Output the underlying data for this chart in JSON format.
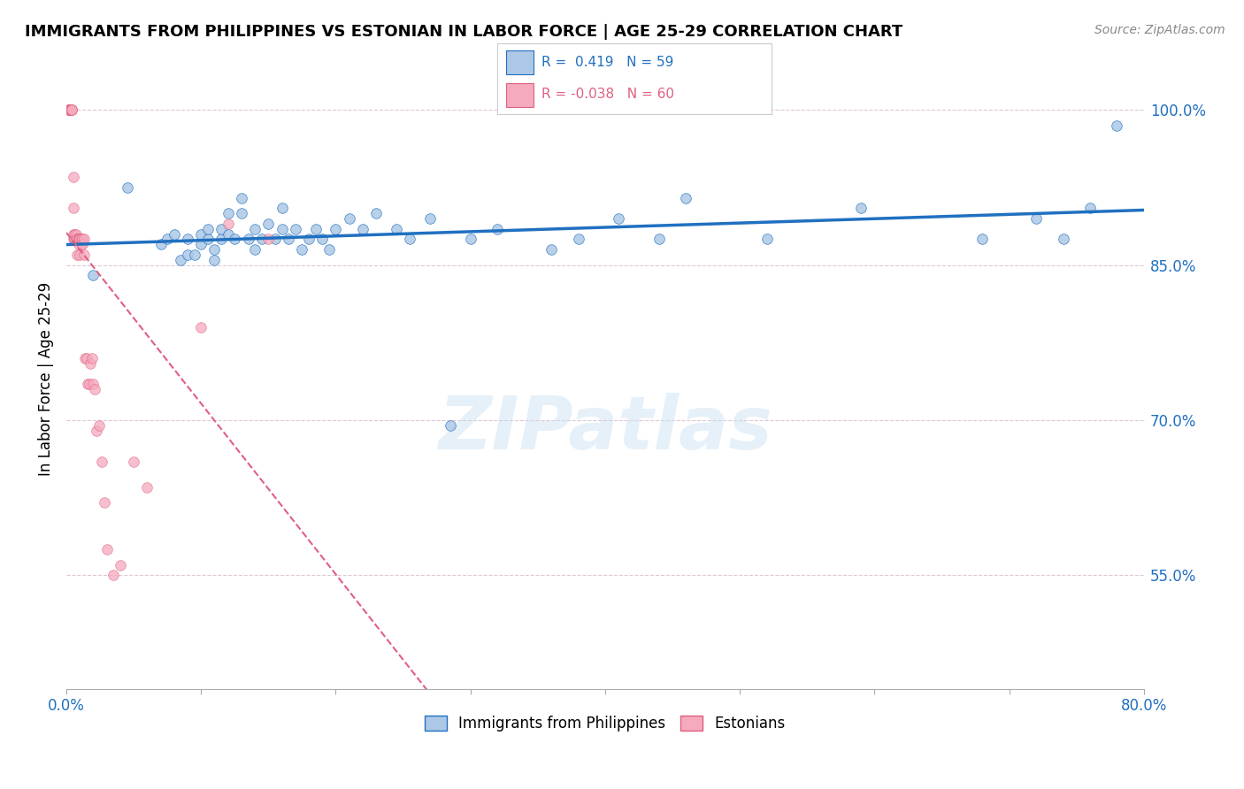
{
  "title": "IMMIGRANTS FROM PHILIPPINES VS ESTONIAN IN LABOR FORCE | AGE 25-29 CORRELATION CHART",
  "source": "Source: ZipAtlas.com",
  "ylabel": "In Labor Force | Age 25-29",
  "ytick_labels": [
    "100.0%",
    "85.0%",
    "70.0%",
    "55.0%"
  ],
  "ytick_values": [
    1.0,
    0.85,
    0.7,
    0.55
  ],
  "xlim": [
    0.0,
    0.8
  ],
  "ylim": [
    0.44,
    1.04
  ],
  "legend_label_blue": "Immigrants from Philippines",
  "legend_label_pink": "Estonians",
  "blue_color": "#adc8e6",
  "pink_color": "#f5aabe",
  "blue_line_color": "#2070c0",
  "pink_line_color": "#e06080",
  "dot_size": 70,
  "blue_scatter_x": [
    0.02,
    0.045,
    0.07,
    0.075,
    0.08,
    0.085,
    0.09,
    0.09,
    0.095,
    0.1,
    0.1,
    0.105,
    0.105,
    0.11,
    0.11,
    0.115,
    0.115,
    0.12,
    0.12,
    0.125,
    0.13,
    0.13,
    0.135,
    0.14,
    0.14,
    0.145,
    0.15,
    0.155,
    0.16,
    0.16,
    0.165,
    0.17,
    0.175,
    0.18,
    0.185,
    0.19,
    0.195,
    0.2,
    0.21,
    0.22,
    0.23,
    0.245,
    0.255,
    0.27,
    0.285,
    0.3,
    0.32,
    0.36,
    0.38,
    0.41,
    0.44,
    0.46,
    0.52,
    0.59,
    0.68,
    0.72,
    0.74,
    0.76,
    0.78
  ],
  "blue_scatter_y": [
    0.84,
    0.925,
    0.87,
    0.875,
    0.88,
    0.855,
    0.86,
    0.875,
    0.86,
    0.88,
    0.87,
    0.875,
    0.885,
    0.855,
    0.865,
    0.875,
    0.885,
    0.9,
    0.88,
    0.875,
    0.915,
    0.9,
    0.875,
    0.865,
    0.885,
    0.875,
    0.89,
    0.875,
    0.905,
    0.885,
    0.875,
    0.885,
    0.865,
    0.875,
    0.885,
    0.875,
    0.865,
    0.885,
    0.895,
    0.885,
    0.9,
    0.885,
    0.875,
    0.895,
    0.695,
    0.875,
    0.885,
    0.865,
    0.875,
    0.895,
    0.875,
    0.915,
    0.875,
    0.905,
    0.875,
    0.895,
    0.875,
    0.905,
    0.985
  ],
  "pink_scatter_x": [
    0.002,
    0.002,
    0.002,
    0.002,
    0.002,
    0.003,
    0.003,
    0.003,
    0.003,
    0.003,
    0.003,
    0.004,
    0.004,
    0.004,
    0.004,
    0.005,
    0.005,
    0.005,
    0.005,
    0.006,
    0.006,
    0.006,
    0.007,
    0.007,
    0.007,
    0.008,
    0.008,
    0.008,
    0.009,
    0.009,
    0.009,
    0.01,
    0.01,
    0.01,
    0.011,
    0.011,
    0.012,
    0.012,
    0.013,
    0.013,
    0.014,
    0.015,
    0.016,
    0.017,
    0.018,
    0.019,
    0.02,
    0.021,
    0.022,
    0.024,
    0.026,
    0.028,
    0.03,
    0.035,
    0.04,
    0.05,
    0.06,
    0.1,
    0.12,
    0.15
  ],
  "pink_scatter_y": [
    1.0,
    1.0,
    1.0,
    1.0,
    1.0,
    1.0,
    1.0,
    1.0,
    1.0,
    1.0,
    1.0,
    1.0,
    1.0,
    1.0,
    1.0,
    0.935,
    0.905,
    0.875,
    0.88,
    0.875,
    0.875,
    0.88,
    0.875,
    0.875,
    0.88,
    0.875,
    0.875,
    0.86,
    0.875,
    0.87,
    0.875,
    0.875,
    0.86,
    0.875,
    0.875,
    0.87,
    0.875,
    0.87,
    0.875,
    0.86,
    0.76,
    0.76,
    0.735,
    0.735,
    0.755,
    0.76,
    0.735,
    0.73,
    0.69,
    0.695,
    0.66,
    0.62,
    0.575,
    0.55,
    0.56,
    0.66,
    0.635,
    0.79,
    0.89,
    0.875
  ],
  "watermark_text": "ZIPatlas",
  "background_color": "#ffffff",
  "grid_color": "#ddc8d8"
}
